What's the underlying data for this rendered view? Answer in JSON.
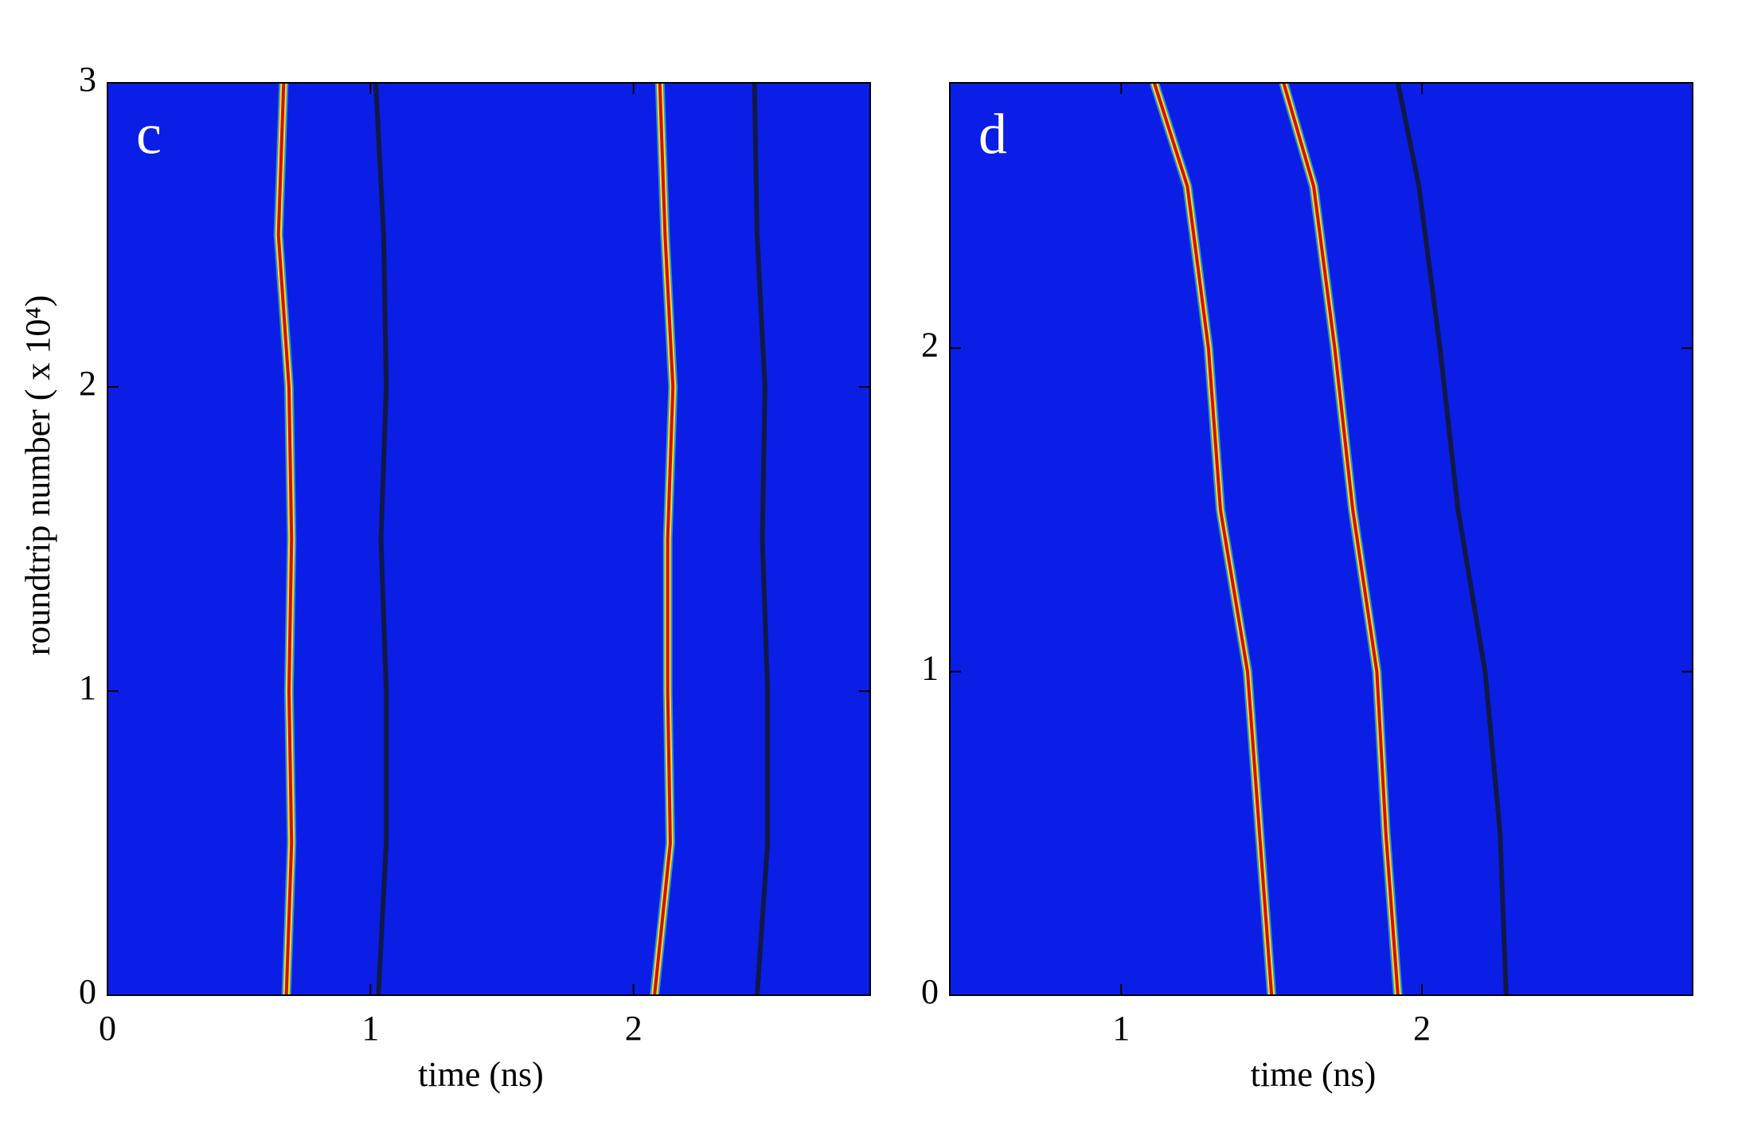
{
  "chart_data": [
    {
      "type": "line",
      "panel_label": "c",
      "xlabel": "time (ns)",
      "ylabel": "roundtrip number ( x 10⁴)",
      "background": "#0b1ee6",
      "xlim": [
        0,
        2.9
      ],
      "ylim": [
        0,
        3
      ],
      "xticks": [
        0,
        1,
        2
      ],
      "yticks": [
        0,
        1,
        2,
        3
      ],
      "y": [
        0,
        0.5,
        1,
        1.5,
        2,
        2.5,
        3
      ],
      "series": [
        {
          "color": "#d01010",
          "values": [
            0.68,
            0.7,
            0.69,
            0.7,
            0.69,
            0.65,
            0.67
          ]
        },
        {
          "color": "#101848",
          "values": [
            1.03,
            1.06,
            1.06,
            1.04,
            1.06,
            1.05,
            1.02
          ]
        },
        {
          "color": "#d01010",
          "values": [
            2.08,
            2.14,
            2.13,
            2.13,
            2.15,
            2.12,
            2.1
          ]
        },
        {
          "color": "#101848",
          "values": [
            2.47,
            2.51,
            2.51,
            2.49,
            2.5,
            2.47,
            2.46
          ]
        }
      ]
    },
    {
      "type": "line",
      "panel_label": "d",
      "xlabel": "time (ns)",
      "background": "#0b1ee6",
      "xlim": [
        0.43,
        2.9
      ],
      "ylim": [
        0,
        2.82
      ],
      "xticks": [
        1,
        2
      ],
      "yticks": [
        0,
        1,
        2
      ],
      "y": [
        0,
        0.5,
        1,
        1.5,
        2,
        2.5,
        2.82
      ],
      "series": [
        {
          "color": "#d01010",
          "values": [
            1.5,
            1.46,
            1.42,
            1.33,
            1.29,
            1.22,
            1.11
          ]
        },
        {
          "color": "#d01010",
          "values": [
            1.92,
            1.88,
            1.85,
            1.77,
            1.71,
            1.64,
            1.54
          ]
        },
        {
          "color": "#101848",
          "values": [
            2.28,
            2.26,
            2.21,
            2.12,
            2.06,
            1.99,
            1.92
          ]
        }
      ]
    }
  ]
}
